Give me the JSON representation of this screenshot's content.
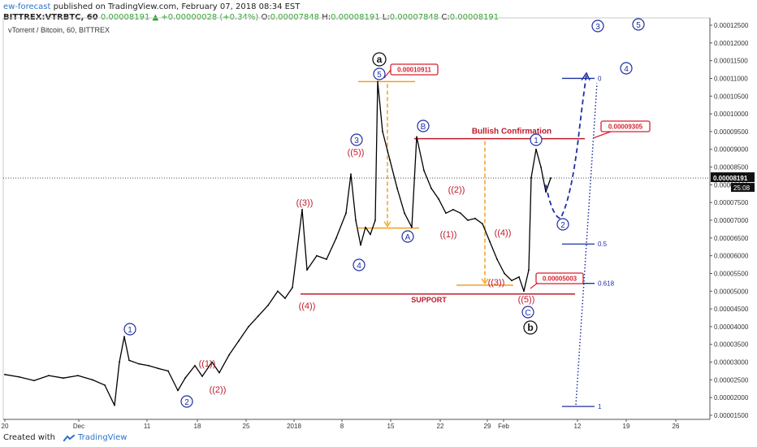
{
  "header": {
    "line1_user": "ew-forecast",
    "line1_rest": " published on TradingView.com, February 07, 2018 08:34 EST",
    "symbol": "BITTREX:VTRBTC, 60",
    "change": "0.00008191 ▲ +0.00000028 (+0.34%)",
    "o_label": "O:",
    "o": "0.00007848",
    "h_label": "H:",
    "h": "0.00008191",
    "l_label": "L:",
    "l": "0.00007848",
    "c_label": "C:",
    "c": "0.00008191"
  },
  "footer": {
    "created_with": "Created with",
    "brand": "TradingView"
  },
  "colors": {
    "price": "#000000",
    "blue": "#1f2fa3",
    "red": "#c0192a",
    "orange": "#f0a020",
    "label_red": "#d6222f"
  },
  "chart_data": {
    "type": "line",
    "title": "vTorrent / Bitcoin, 60, BITTREX",
    "symbol": "VTRBTC",
    "x_ticks": [
      "20",
      "Dec",
      "11",
      "18",
      "25",
      "2018",
      "8",
      "15",
      "22",
      "29",
      "Feb",
      "12",
      "19",
      "26"
    ],
    "y_ticks": [
      "0.00012500",
      "0.00012000",
      "0.00011500",
      "0.00011000",
      "0.00010500",
      "0.00010000",
      "0.00009500",
      "0.00009000",
      "0.00008500",
      "0.00008000",
      "0.00007500",
      "0.00007000",
      "0.00006500",
      "0.00006000",
      "0.00005500",
      "0.00005000",
      "0.00004500",
      "0.00004000",
      "0.00003500",
      "0.00003000",
      "0.00002500",
      "0.00002000",
      "0.00001500"
    ],
    "ylim": [
      1.45e-05,
      0.0001265
    ],
    "last_price_label": "0.00008191",
    "countdown_label": "25:08",
    "price_series": [
      {
        "t": 0,
        "v": 2.65e-05
      },
      {
        "t": 6,
        "v": 2.58e-05
      },
      {
        "t": 12,
        "v": 2.48e-05
      },
      {
        "t": 18,
        "v": 2.62e-05
      },
      {
        "t": 24,
        "v": 2.55e-05
      },
      {
        "t": 30,
        "v": 2.62e-05
      },
      {
        "t": 36,
        "v": 2.5e-05
      },
      {
        "t": 41,
        "v": 2.35e-05
      },
      {
        "t": 45,
        "v": 1.78e-05
      },
      {
        "t": 47,
        "v": 3e-05
      },
      {
        "t": 49,
        "v": 3.72e-05
      },
      {
        "t": 51,
        "v": 3.05e-05
      },
      {
        "t": 55,
        "v": 2.95e-05
      },
      {
        "t": 59,
        "v": 2.9e-05
      },
      {
        "t": 63,
        "v": 2.82e-05
      },
      {
        "t": 67,
        "v": 2.75e-05
      },
      {
        "t": 71,
        "v": 2.2e-05
      },
      {
        "t": 74,
        "v": 2.55e-05
      },
      {
        "t": 78,
        "v": 2.9e-05
      },
      {
        "t": 81,
        "v": 2.6e-05
      },
      {
        "t": 85,
        "v": 3e-05
      },
      {
        "t": 88,
        "v": 2.7e-05
      },
      {
        "t": 92,
        "v": 3.2e-05
      },
      {
        "t": 96,
        "v": 3.6e-05
      },
      {
        "t": 100,
        "v": 4e-05
      },
      {
        "t": 104,
        "v": 4.3e-05
      },
      {
        "t": 108,
        "v": 4.6e-05
      },
      {
        "t": 112,
        "v": 5e-05
      },
      {
        "t": 115,
        "v": 4.8e-05
      },
      {
        "t": 118,
        "v": 5.1e-05
      },
      {
        "t": 122,
        "v": 7.3e-05
      },
      {
        "t": 124,
        "v": 5.6e-05
      },
      {
        "t": 128,
        "v": 6e-05
      },
      {
        "t": 132,
        "v": 5.9e-05
      },
      {
        "t": 136,
        "v": 6.5e-05
      },
      {
        "t": 140,
        "v": 7.2e-05
      },
      {
        "t": 142,
        "v": 8.3e-05
      },
      {
        "t": 144,
        "v": 7e-05
      },
      {
        "t": 146,
        "v": 6.3e-05
      },
      {
        "t": 148,
        "v": 6.8e-05
      },
      {
        "t": 150,
        "v": 6.6e-05
      },
      {
        "t": 152,
        "v": 7e-05
      },
      {
        "t": 153,
        "v": 0.0001091
      },
      {
        "t": 155,
        "v": 9.5e-05
      },
      {
        "t": 158,
        "v": 8.7e-05
      },
      {
        "t": 161,
        "v": 7.9e-05
      },
      {
        "t": 164,
        "v": 7.2e-05
      },
      {
        "t": 167,
        "v": 6.8e-05
      },
      {
        "t": 169,
        "v": 9.35e-05
      },
      {
        "t": 172,
        "v": 8.4e-05
      },
      {
        "t": 175,
        "v": 7.9e-05
      },
      {
        "t": 178,
        "v": 7.6e-05
      },
      {
        "t": 181,
        "v": 7.2e-05
      },
      {
        "t": 184,
        "v": 7.3e-05
      },
      {
        "t": 187,
        "v": 7.2e-05
      },
      {
        "t": 190,
        "v": 7e-05
      },
      {
        "t": 193,
        "v": 7.05e-05
      },
      {
        "t": 196,
        "v": 6.9e-05
      },
      {
        "t": 199,
        "v": 6.4e-05
      },
      {
        "t": 202,
        "v": 5.9e-05
      },
      {
        "t": 205,
        "v": 5.5e-05
      },
      {
        "t": 208,
        "v": 5.3e-05
      },
      {
        "t": 211,
        "v": 5.4e-05
      },
      {
        "t": 213,
        "v": 5e-05
      },
      {
        "t": 215,
        "v": 5.6e-05
      },
      {
        "t": 216,
        "v": 8.2e-05
      },
      {
        "t": 218,
        "v": 9e-05
      },
      {
        "t": 220,
        "v": 8.5e-05
      },
      {
        "t": 222,
        "v": 7.8e-05
      },
      {
        "t": 224,
        "v": 8.19e-05
      }
    ],
    "annotations": {
      "horizontal_lines": [
        {
          "label": "SUPPORT",
          "value": 4.92e-05
        },
        {
          "label": "Bullish Confirmation",
          "value": 9.3e-05
        }
      ],
      "price_boxes": [
        "0.00010911",
        "0.00009305",
        "0.00005003"
      ],
      "fib_levels": [
        {
          "label": "0",
          "value": 0.00011
        },
        {
          "label": "0.5",
          "value": 6.33e-05
        },
        {
          "label": "0.618",
          "value": 5.22e-05
        },
        {
          "label": "1",
          "value": 1.75e-05
        }
      ],
      "wave_labels": [
        "1",
        "2",
        "(1)",
        "(2)",
        "(3)",
        "(4)",
        "3",
        "(5)",
        "4",
        "5",
        "a",
        "A",
        "B",
        "(1)",
        "(2)",
        "(3)",
        "(4)",
        "(5)",
        "C",
        "b",
        "1",
        "2",
        "3",
        "4",
        "5"
      ]
    }
  }
}
